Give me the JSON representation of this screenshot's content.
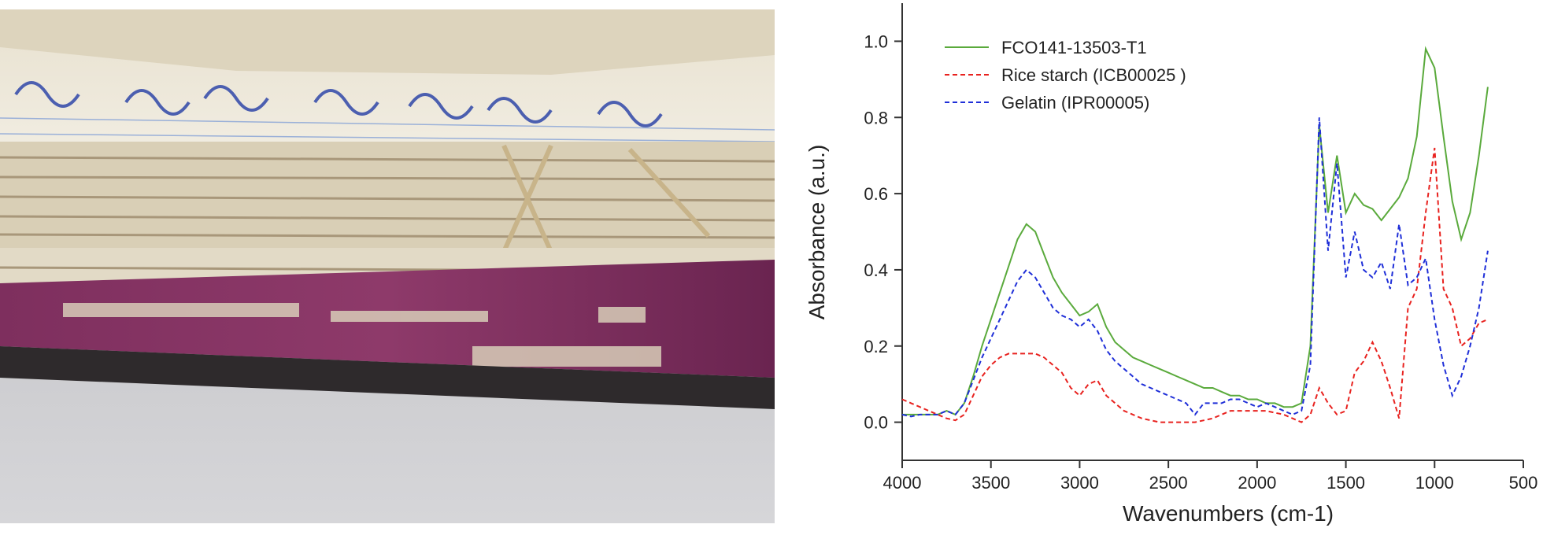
{
  "chart_data": {
    "type": "line",
    "xlabel": "Wavenumbers (cm-1)",
    "ylabel": "Absorbance (a.u.)",
    "x": [
      4000,
      3950,
      3900,
      3850,
      3800,
      3750,
      3700,
      3650,
      3600,
      3550,
      3500,
      3450,
      3400,
      3350,
      3300,
      3250,
      3200,
      3150,
      3100,
      3050,
      3000,
      2950,
      2900,
      2850,
      2800,
      2750,
      2700,
      2650,
      2600,
      2550,
      2500,
      2450,
      2400,
      2350,
      2300,
      2250,
      2200,
      2150,
      2100,
      2050,
      2000,
      1950,
      1900,
      1850,
      1800,
      1750,
      1700,
      1650,
      1600,
      1550,
      1500,
      1450,
      1400,
      1350,
      1300,
      1250,
      1200,
      1150,
      1100,
      1050,
      1000,
      950,
      900,
      850,
      800,
      750,
      700
    ],
    "series": [
      {
        "name": "FCO141-13503-T1",
        "color": "#5aaa3c",
        "dash": false,
        "values": [
          0.02,
          0.02,
          0.02,
          0.02,
          0.02,
          0.03,
          0.02,
          0.05,
          0.12,
          0.2,
          0.27,
          0.34,
          0.41,
          0.48,
          0.52,
          0.5,
          0.44,
          0.38,
          0.34,
          0.31,
          0.28,
          0.29,
          0.31,
          0.25,
          0.21,
          0.19,
          0.17,
          0.16,
          0.15,
          0.14,
          0.13,
          0.12,
          0.11,
          0.1,
          0.09,
          0.09,
          0.08,
          0.07,
          0.07,
          0.06,
          0.06,
          0.05,
          0.05,
          0.04,
          0.04,
          0.05,
          0.2,
          0.78,
          0.55,
          0.7,
          0.55,
          0.6,
          0.57,
          0.56,
          0.53,
          0.56,
          0.59,
          0.64,
          0.75,
          0.98,
          0.93,
          0.75,
          0.58,
          0.48,
          0.55,
          0.7,
          0.88
        ]
      },
      {
        "name": "Rice starch (ICB00025 )",
        "color": "#e8221f",
        "dash": true,
        "values": [
          0.06,
          0.05,
          0.04,
          0.03,
          0.02,
          0.01,
          0.005,
          0.02,
          0.07,
          0.12,
          0.15,
          0.17,
          0.18,
          0.18,
          0.18,
          0.18,
          0.17,
          0.15,
          0.13,
          0.09,
          0.07,
          0.1,
          0.11,
          0.07,
          0.05,
          0.03,
          0.02,
          0.01,
          0.005,
          0,
          0,
          0,
          0,
          0,
          0.005,
          0.01,
          0.02,
          0.03,
          0.03,
          0.03,
          0.03,
          0.03,
          0.025,
          0.02,
          0.01,
          0,
          0.02,
          0.09,
          0.05,
          0.02,
          0.03,
          0.13,
          0.16,
          0.21,
          0.16,
          0.09,
          0.01,
          0.3,
          0.35,
          0.55,
          0.72,
          0.35,
          0.3,
          0.2,
          0.22,
          0.26,
          0.27
        ]
      },
      {
        "name": "Gelatin (IPR00005)",
        "color": "#1f2fd8",
        "dash": true,
        "values": [
          0.02,
          0.015,
          0.02,
          0.02,
          0.02,
          0.03,
          0.02,
          0.05,
          0.11,
          0.17,
          0.22,
          0.27,
          0.32,
          0.37,
          0.4,
          0.38,
          0.34,
          0.3,
          0.28,
          0.27,
          0.25,
          0.27,
          0.24,
          0.19,
          0.16,
          0.14,
          0.12,
          0.1,
          0.09,
          0.08,
          0.07,
          0.06,
          0.05,
          0.02,
          0.05,
          0.05,
          0.05,
          0.06,
          0.06,
          0.05,
          0.04,
          0.05,
          0.04,
          0.03,
          0.02,
          0.03,
          0.15,
          0.8,
          0.45,
          0.68,
          0.38,
          0.5,
          0.4,
          0.38,
          0.42,
          0.35,
          0.52,
          0.36,
          0.38,
          0.43,
          0.27,
          0.15,
          0.07,
          0.12,
          0.2,
          0.3,
          0.45
        ]
      }
    ],
    "xlim": [
      4000,
      500
    ],
    "xticks": [
      4000,
      3500,
      3000,
      2500,
      2000,
      1500,
      1000,
      500
    ],
    "ylim": [
      -0.1,
      1.1
    ],
    "yticks": [
      {
        "value": 0,
        "label": "0.0"
      },
      0.2,
      0.4,
      0.6,
      0.8,
      {
        "value": 1,
        "label": "1.0"
      }
    ],
    "grid": false,
    "legend": "upper left"
  }
}
